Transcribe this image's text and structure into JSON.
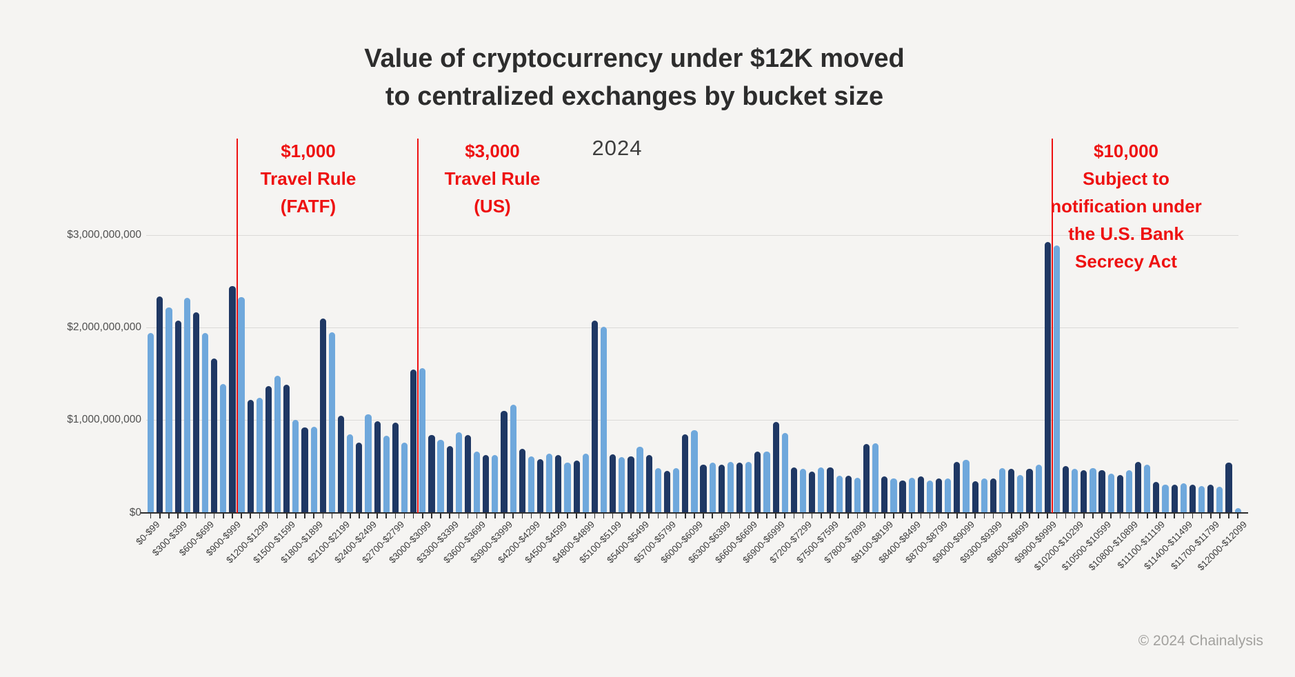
{
  "page": {
    "background": "#f5f4f2",
    "footer": "© 2024 Chainalysis"
  },
  "chart_data": {
    "type": "bar",
    "title_lines": [
      "Value of cryptocurrency under $12K moved",
      "to centralized exchanges by bucket size"
    ],
    "year_label": "2024",
    "y_axis": {
      "tick_labels": [
        "$3,000,000,000",
        "$2,000,000,000",
        "$1,000,000,000",
        "$0"
      ],
      "tick_values_billions": [
        3,
        2,
        1,
        0
      ],
      "ylim_billions": [
        0,
        3.2
      ],
      "grid": true
    },
    "x_axis": {
      "bucket_width_dollars": 100,
      "labeled_every_n_buckets": 3,
      "tick_labels": [
        "$0-$99",
        "$300-$399",
        "$600-$699",
        "$900-$999",
        "$1200-$1299",
        "$1500-$1599",
        "$1800-$1899",
        "$2100-$2199",
        "$2400-$2499",
        "$2700-$2799",
        "$3000-$3099",
        "$3300-$3399",
        "$3600-$3699",
        "$3900-$3999",
        "$4200-$4299",
        "$4500-$4599",
        "$4800-$4899",
        "$5100-$5199",
        "$5400-$5499",
        "$5700-$5799",
        "$6000-$6099",
        "$6300-$6399",
        "$6600-$6699",
        "$6900-$6999",
        "$7200-$7299",
        "$7500-$7599",
        "$7800-$7899",
        "$8100-$8199",
        "$8400-$8499",
        "$8700-$8799",
        "$9000-$9099",
        "$9300-$9399",
        "$9600-$9699",
        "$9900-$9999",
        "$10200-$10299",
        "$10500-$10599",
        "$10800-$10899",
        "$11100-$11199",
        "$11400-$11499",
        "$11700-$11799",
        "$12000-$12099"
      ]
    },
    "values_billions": [
      1.94,
      2.34,
      2.22,
      2.08,
      2.32,
      2.17,
      1.94,
      1.67,
      1.39,
      2.45,
      2.33,
      1.22,
      1.24,
      1.37,
      1.48,
      1.38,
      1.0,
      0.92,
      0.93,
      2.1,
      1.95,
      1.05,
      0.85,
      0.76,
      1.06,
      0.99,
      0.83,
      0.97,
      0.76,
      1.55,
      1.56,
      0.84,
      0.79,
      0.72,
      0.87,
      0.84,
      0.66,
      0.62,
      0.62,
      1.1,
      1.17,
      0.69,
      0.61,
      0.58,
      0.64,
      0.62,
      0.54,
      0.56,
      0.64,
      2.08,
      2.01,
      0.63,
      0.6,
      0.61,
      0.71,
      0.62,
      0.48,
      0.45,
      0.48,
      0.85,
      0.89,
      0.52,
      0.54,
      0.52,
      0.55,
      0.54,
      0.55,
      0.66,
      0.66,
      0.98,
      0.86,
      0.49,
      0.47,
      0.44,
      0.49,
      0.49,
      0.4,
      0.4,
      0.38,
      0.74,
      0.75,
      0.39,
      0.37,
      0.35,
      0.38,
      0.39,
      0.35,
      0.37,
      0.37,
      0.55,
      0.57,
      0.34,
      0.37,
      0.37,
      0.48,
      0.47,
      0.41,
      0.47,
      0.52,
      2.93,
      2.89,
      0.5,
      0.47,
      0.46,
      0.48,
      0.46,
      0.42,
      0.41,
      0.46,
      0.55,
      0.52,
      0.33,
      0.3,
      0.3,
      0.32,
      0.3,
      0.29,
      0.3,
      0.28,
      0.54,
      0.05
    ],
    "bar_colors": {
      "light": "#6fa8dc",
      "dark": "#1f3864"
    },
    "color_pattern": "alternating, first bucket light",
    "annotation_color": "#ee1111",
    "annotations": [
      {
        "threshold_dollars": 1000,
        "lines": [
          "$1,000",
          "Travel Rule",
          "(FATF)"
        ]
      },
      {
        "threshold_dollars": 3000,
        "lines": [
          "$3,000",
          "Travel Rule",
          "(US)"
        ]
      },
      {
        "threshold_dollars": 10000,
        "lines": [
          "$10,000",
          "Subject to",
          "notification under",
          "the U.S. Bank",
          "Secrecy Act"
        ]
      }
    ]
  }
}
